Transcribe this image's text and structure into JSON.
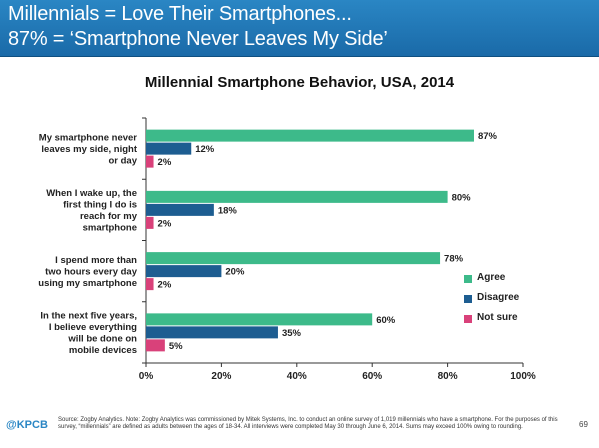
{
  "banner": {
    "line1": "Millennials = Love Their Smartphones...",
    "line2": "87% = ‘Smartphone Never Leaves My Side’"
  },
  "chart_data": {
    "type": "bar",
    "orientation": "horizontal",
    "title": "Millennial Smartphone Behavior, USA, 2014",
    "categories": [
      [
        "My smartphone never",
        "leaves my side, night",
        "or day"
      ],
      [
        "When I wake up, the",
        "first thing I do is",
        "reach for my",
        "smartphone"
      ],
      [
        "I spend more than",
        "two hours every day",
        "using my smartphone"
      ],
      [
        "In the next five years,",
        "I believe everything",
        "will be done on",
        "mobile devices"
      ]
    ],
    "series": [
      {
        "name": "Agree",
        "values": [
          87,
          80,
          78,
          60
        ],
        "color": "#3dba8a"
      },
      {
        "name": "Disagree",
        "values": [
          12,
          18,
          20,
          35
        ],
        "color": "#1d5d91"
      },
      {
        "name": "Not sure",
        "values": [
          2,
          2,
          2,
          5
        ],
        "color": "#d9417a"
      }
    ],
    "xlim": [
      0,
      100
    ],
    "xticks": [
      "0%",
      "20%",
      "40%",
      "60%",
      "80%",
      "100%"
    ],
    "legend_position": "right",
    "grid": false
  },
  "footer": {
    "logo": "@KPCB",
    "note": "Source: Zogby Analytics. Note: Zogby Analytics was commissioned by Mitek Systems, Inc. to conduct an online survey of 1,019 millennials who have a smartphone. For the purposes of this survey, “millennials” are defined as adults between the ages of 18-34. All interviews were completed May 30 through June 6, 2014. Sums may exceed 100% owing to rounding.",
    "page_number": "69"
  }
}
